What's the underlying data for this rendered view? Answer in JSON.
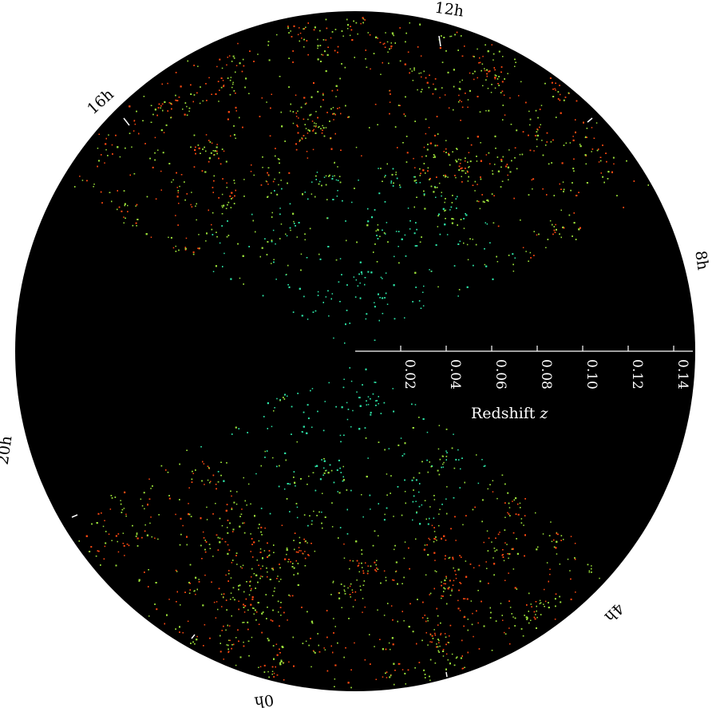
{
  "hour_labels": [
    {
      "text": "12h",
      "name": "hour-label-12h"
    },
    {
      "text": "16h",
      "name": "hour-label-16h"
    },
    {
      "text": "8h",
      "name": "hour-label-8h"
    },
    {
      "text": "20h",
      "name": "hour-label-20h"
    },
    {
      "text": "4h",
      "name": "hour-label-4h"
    },
    {
      "text": "0h",
      "name": "hour-label-0h"
    }
  ],
  "redshift_axis": {
    "title": "Redshift",
    "title_var": "z",
    "ticks": [
      "0.02",
      "0.04",
      "0.06",
      "0.08",
      "0.10",
      "0.12",
      "0.14"
    ]
  },
  "colors": {
    "background": "#000000",
    "outside": "#ffffff",
    "galaxy_near": "#2ee6a8",
    "galaxy_mid": "#9be03a",
    "galaxy_far": "#ff4a12"
  }
}
